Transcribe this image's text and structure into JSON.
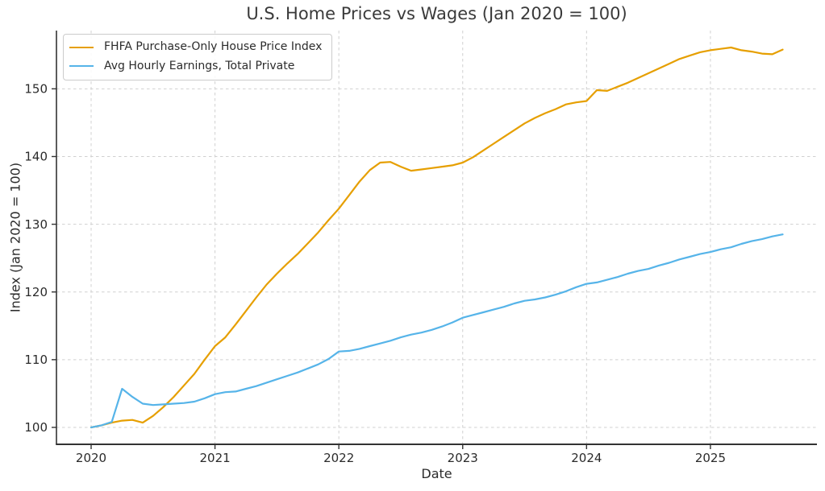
{
  "chart_data": {
    "type": "line",
    "title": "U.S. Home Prices vs Wages (Jan 2020 = 100)",
    "xlabel": "Date",
    "ylabel": "Index (Jan 2020 = 100)",
    "x_ticks": [
      2020,
      2021,
      2022,
      2023,
      2024,
      2025
    ],
    "x_tick_labels": [
      "2020",
      "2021",
      "2022",
      "2023",
      "2024",
      "2025"
    ],
    "y_ticks": [
      100,
      110,
      120,
      130,
      140,
      150
    ],
    "xlim": [
      2019.72,
      2025.86
    ],
    "ylim": [
      97.5,
      158.6
    ],
    "grid": true,
    "grid_style": "dashed",
    "legend_position": "upper left",
    "x_start": "2020-01",
    "frequency": "monthly",
    "series": [
      {
        "name": "FHFA Purchase-Only House Price Index",
        "color": "#E69F00",
        "values": [
          100.0,
          100.3,
          100.7,
          101.0,
          101.1,
          100.7,
          101.7,
          103.0,
          104.5,
          106.2,
          107.9,
          110.0,
          112.0,
          113.3,
          115.2,
          117.2,
          119.2,
          121.1,
          122.7,
          124.2,
          125.6,
          127.2,
          128.8,
          130.6,
          132.3,
          134.3,
          136.3,
          138.0,
          139.1,
          139.2,
          138.5,
          137.9,
          138.1,
          138.3,
          138.5,
          138.7,
          139.1,
          139.9,
          140.9,
          141.9,
          142.9,
          143.9,
          144.9,
          145.7,
          146.4,
          147.0,
          147.7,
          148.0,
          148.2,
          149.8,
          149.7,
          150.3,
          150.9,
          151.6,
          152.3,
          153.0,
          153.7,
          154.4,
          154.9,
          155.4,
          155.7,
          155.9,
          156.1,
          155.7,
          155.5,
          155.2,
          155.1,
          155.8
        ]
      },
      {
        "name": "Avg Hourly Earnings, Total Private",
        "color": "#56B4E9",
        "values": [
          100.0,
          100.3,
          100.8,
          105.7,
          104.5,
          103.5,
          103.3,
          103.4,
          103.5,
          103.6,
          103.8,
          104.3,
          104.9,
          105.2,
          105.3,
          105.7,
          106.1,
          106.6,
          107.1,
          107.6,
          108.1,
          108.7,
          109.3,
          110.1,
          111.2,
          111.3,
          111.6,
          112.0,
          112.4,
          112.8,
          113.3,
          113.7,
          114.0,
          114.4,
          114.9,
          115.5,
          116.2,
          116.6,
          117.0,
          117.4,
          117.8,
          118.3,
          118.7,
          118.9,
          119.2,
          119.6,
          120.1,
          120.7,
          121.2,
          121.4,
          121.8,
          122.2,
          122.7,
          123.1,
          123.4,
          123.9,
          124.3,
          124.8,
          125.2,
          125.6,
          125.9,
          126.3,
          126.6,
          127.1,
          127.5,
          127.8,
          128.2,
          128.5
        ]
      }
    ]
  },
  "colors": {
    "text": "#2b2b2b",
    "title_text": "#3a3a3a",
    "grid": "#d0d0d0",
    "spine": "#333333",
    "background": "#ffffff",
    "legend_border": "#cccccc"
  }
}
